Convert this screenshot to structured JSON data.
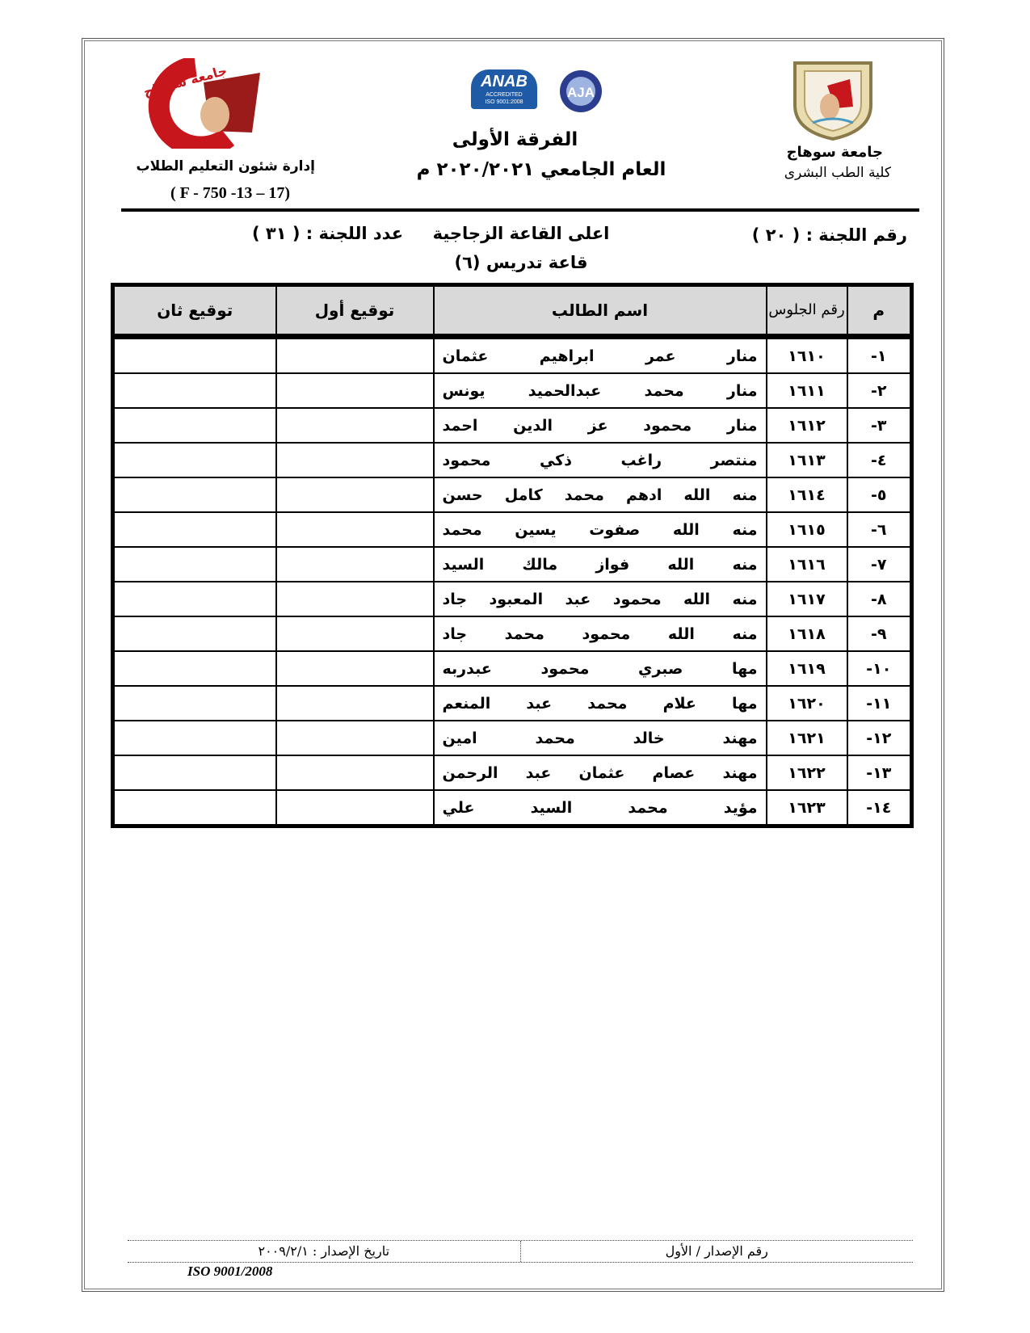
{
  "header": {
    "university": "جامعة سوهاج",
    "faculty": "كلية الطب البشرى",
    "year_level": "الفرقة الأولى",
    "academic_year": "العام الجامعي ٢٠٢٠/٢٠٢١ م",
    "department": "إدارة شئون التعليم الطلاب",
    "form_code": "( F - 750 -13 – 17)",
    "logo_left_text": "جامعة سوهاج - كلية الطب",
    "accreditation_logos": [
      "ANAB ACCREDITED ISO 9001:2008",
      "AJA"
    ],
    "colors": {
      "logo_red": "#c8161d",
      "seal_gold": "#b8a26a"
    }
  },
  "committee": {
    "number_label": "رقم اللجنة : ( ٢٠ )",
    "location": "اعلى القاعة الزجاجية",
    "count_label": "عدد اللجنة : ( ٣١ )",
    "hall": "قاعة تدريس (٦)"
  },
  "table": {
    "headers": [
      "م",
      "رقم الجلوس",
      "اسم الطالب",
      "توقيع أول",
      "توقيع ثان"
    ],
    "rows": [
      {
        "idx": "١-",
        "seat": "١٦١٠",
        "name": "منار عمر ابراهيم عثمان"
      },
      {
        "idx": "٢-",
        "seat": "١٦١١",
        "name": "منار محمد عبدالحميد يونس"
      },
      {
        "idx": "٣-",
        "seat": "١٦١٢",
        "name": "منار محمود عز الدين احمد"
      },
      {
        "idx": "٤-",
        "seat": "١٦١٣",
        "name": "منتصر راغب ذكي محمود"
      },
      {
        "idx": "٥-",
        "seat": "١٦١٤",
        "name": "منه الله ادهم محمد كامل حسن"
      },
      {
        "idx": "٦-",
        "seat": "١٦١٥",
        "name": "منه الله صفوت يسين محمد"
      },
      {
        "idx": "٧-",
        "seat": "١٦١٦",
        "name": "منه الله فواز مالك السيد"
      },
      {
        "idx": "٨-",
        "seat": "١٦١٧",
        "name": "منه الله محمود عبد المعبود جاد"
      },
      {
        "idx": "٩-",
        "seat": "١٦١٨",
        "name": "منه الله محمود محمد جاد"
      },
      {
        "idx": "١٠-",
        "seat": "١٦١٩",
        "name": "مها صبري محمود عبدربه"
      },
      {
        "idx": "١١-",
        "seat": "١٦٢٠",
        "name": "مها علام محمد عبد المنعم"
      },
      {
        "idx": "١٢-",
        "seat": "١٦٢١",
        "name": "مهند خالد محمد امين"
      },
      {
        "idx": "١٣-",
        "seat": "١٦٢٢",
        "name": "مهند عصام عثمان عبد الرحمن"
      },
      {
        "idx": "١٤-",
        "seat": "١٦٢٣",
        "name": "مؤيد محمد السيد علي"
      }
    ]
  },
  "footer": {
    "issue_number": "رقم الإصدار / الأول",
    "issue_date": "تاريخ الإصدار : ٢٠٠٩/٢/١",
    "iso": "ISO 9001/2008"
  }
}
